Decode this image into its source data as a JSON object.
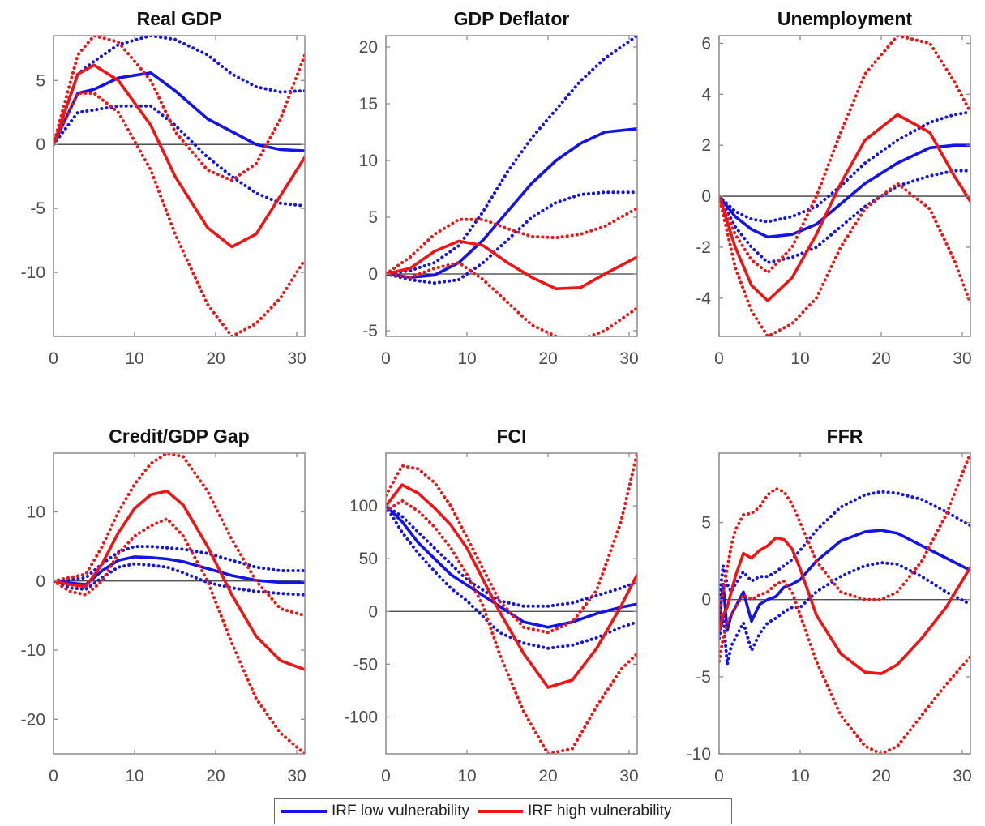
{
  "colors": {
    "low": "#1414e6",
    "high": "#f01414",
    "axis": "#8c8c8c",
    "zero": "#3a3a3a",
    "tick": "#4d4d4d"
  },
  "legend": [
    {
      "label": "IRF low vulnerability",
      "color": "#1414e6"
    },
    {
      "label": "IRF high vulnerability",
      "color": "#f01414"
    }
  ],
  "chart_data": [
    {
      "type": "line",
      "title": "Real GDP",
      "xlim": [
        0,
        31
      ],
      "ylim": [
        -15,
        8.5
      ],
      "xticks": [
        0,
        10,
        20,
        30
      ],
      "yticks": [
        -10,
        -5,
        0,
        5
      ],
      "x": [
        0,
        3,
        5,
        8,
        12,
        15,
        19,
        22,
        25,
        28,
        31
      ],
      "series": [
        {
          "name": "IRF low vulnerability",
          "color": "#1414e6",
          "style": "solid",
          "values": [
            0,
            4,
            4.3,
            5.2,
            5.6,
            4.2,
            2,
            1,
            0,
            -0.4,
            -0.5
          ]
        },
        {
          "color": "#1414e6",
          "style": "dotted",
          "values": [
            0,
            5.5,
            6.5,
            7.8,
            8.5,
            8.2,
            7,
            5.5,
            4.5,
            4.1,
            4.2
          ]
        },
        {
          "color": "#1414e6",
          "style": "dotted",
          "values": [
            0,
            2.5,
            2.7,
            3.0,
            3.0,
            1.5,
            -1,
            -2.5,
            -3.8,
            -4.6,
            -4.8
          ]
        },
        {
          "name": "IRF high vulnerability",
          "color": "#f01414",
          "style": "solid",
          "values": [
            0,
            5.5,
            6.2,
            5,
            1.5,
            -2.5,
            -6.5,
            -8,
            -7,
            -4,
            -1
          ]
        },
        {
          "color": "#f01414",
          "style": "dotted",
          "values": [
            0,
            7,
            8.5,
            8,
            5,
            1,
            -2,
            -2.8,
            -1.5,
            2,
            7
          ]
        },
        {
          "color": "#f01414",
          "style": "dotted",
          "values": [
            0,
            4,
            4,
            2.5,
            -2,
            -7,
            -12.5,
            -15,
            -14,
            -12,
            -9
          ]
        }
      ]
    },
    {
      "type": "line",
      "title": "GDP Deflator",
      "xlim": [
        0,
        31
      ],
      "ylim": [
        -5.5,
        21
      ],
      "xticks": [
        0,
        10,
        20,
        30
      ],
      "yticks": [
        -5,
        0,
        5,
        10,
        15,
        20
      ],
      "x": [
        0,
        3,
        6,
        9,
        12,
        15,
        18,
        21,
        24,
        27,
        31
      ],
      "series": [
        {
          "name": "IRF low vulnerability",
          "color": "#1414e6",
          "style": "solid",
          "values": [
            0,
            -0.3,
            -0.1,
            1,
            3,
            5.5,
            8,
            10,
            11.5,
            12.5,
            12.8
          ]
        },
        {
          "color": "#1414e6",
          "style": "dotted",
          "values": [
            0,
            0.3,
            1,
            2.5,
            5.5,
            9,
            12,
            14.5,
            17,
            19,
            21
          ]
        },
        {
          "color": "#1414e6",
          "style": "dotted",
          "values": [
            0,
            -0.5,
            -0.8,
            -0.5,
            1,
            3,
            5,
            6.3,
            7,
            7.2,
            7.2
          ]
        },
        {
          "name": "IRF high vulnerability",
          "color": "#f01414",
          "style": "solid",
          "values": [
            0,
            0.5,
            2,
            2.9,
            2.5,
            1,
            -0.3,
            -1.3,
            -1.2,
            0,
            1.5
          ]
        },
        {
          "color": "#f01414",
          "style": "dotted",
          "values": [
            0,
            1.5,
            3.5,
            4.8,
            4.8,
            4,
            3.3,
            3.2,
            3.5,
            4.2,
            5.8
          ]
        },
        {
          "color": "#f01414",
          "style": "dotted",
          "values": [
            0,
            -0.3,
            0.5,
            1,
            -0.5,
            -2.5,
            -4.5,
            -5.5,
            -5.8,
            -5,
            -3
          ]
        }
      ]
    },
    {
      "type": "line",
      "title": "Unemployment",
      "xlim": [
        0,
        31
      ],
      "ylim": [
        -5.5,
        6.3
      ],
      "xticks": [
        0,
        10,
        20,
        30
      ],
      "yticks": [
        -4,
        -2,
        0,
        2,
        4,
        6
      ],
      "x": [
        0,
        2,
        4,
        6,
        9,
        12,
        15,
        18,
        22,
        26,
        29,
        31
      ],
      "series": [
        {
          "name": "IRF low vulnerability",
          "color": "#1414e6",
          "style": "solid",
          "values": [
            0,
            -0.8,
            -1.3,
            -1.6,
            -1.5,
            -1.1,
            -0.3,
            0.5,
            1.3,
            1.9,
            2.0,
            2.0
          ]
        },
        {
          "color": "#1414e6",
          "style": "dotted",
          "values": [
            0,
            -0.6,
            -0.9,
            -1.0,
            -0.8,
            -0.4,
            0.4,
            1.3,
            2.2,
            2.9,
            3.2,
            3.3
          ]
        },
        {
          "color": "#1414e6",
          "style": "dotted",
          "values": [
            0,
            -1.2,
            -2,
            -2.6,
            -2.4,
            -2,
            -1.2,
            -0.4,
            0.4,
            0.8,
            1,
            1
          ]
        },
        {
          "name": "IRF high vulnerability",
          "color": "#f01414",
          "style": "solid",
          "values": [
            0,
            -2,
            -3.5,
            -4.1,
            -3.2,
            -1.5,
            0.5,
            2.2,
            3.2,
            2.5,
            0.8,
            -0.2
          ]
        },
        {
          "color": "#f01414",
          "style": "dotted",
          "values": [
            0,
            -1.5,
            -2.5,
            -3,
            -2,
            0,
            2.5,
            4.8,
            6.3,
            6,
            4.5,
            3.3
          ]
        },
        {
          "color": "#f01414",
          "style": "dotted",
          "values": [
            0,
            -2.8,
            -4.5,
            -5.5,
            -5,
            -4,
            -2,
            -0.5,
            0.5,
            -0.5,
            -2.5,
            -4.2
          ]
        }
      ]
    },
    {
      "type": "line",
      "title": "Credit/GDP Gap",
      "xlim": [
        0,
        31
      ],
      "ylim": [
        -25,
        18.5
      ],
      "xticks": [
        0,
        10,
        20,
        30
      ],
      "yticks": [
        -20,
        -10,
        0,
        10
      ],
      "x": [
        0,
        2,
        4,
        6,
        8,
        10,
        12,
        14,
        16,
        19,
        22,
        25,
        28,
        31
      ],
      "series": [
        {
          "name": "IRF low vulnerability",
          "color": "#1414e6",
          "style": "solid",
          "values": [
            0,
            -0.3,
            -0.5,
            1.5,
            3,
            3.5,
            3.4,
            3.2,
            2.8,
            1.8,
            0.8,
            0.1,
            -0.2,
            -0.2
          ]
        },
        {
          "color": "#1414e6",
          "style": "dotted",
          "values": [
            0,
            0.2,
            0.5,
            2.5,
            4.2,
            5,
            5,
            4.8,
            4.6,
            4,
            3,
            2,
            1.5,
            1.5
          ]
        },
        {
          "color": "#1414e6",
          "style": "dotted",
          "values": [
            0,
            -1,
            -1.2,
            0.5,
            2,
            2.5,
            2.3,
            2,
            1.2,
            -0.2,
            -1,
            -1.5,
            -1.8,
            -2
          ]
        },
        {
          "name": "IRF high vulnerability",
          "color": "#f01414",
          "style": "solid",
          "values": [
            0,
            -0.5,
            -0.8,
            2.5,
            7,
            10.5,
            12.5,
            13,
            11,
            5,
            -2,
            -8,
            -11.5,
            -12.8
          ]
        },
        {
          "color": "#f01414",
          "style": "dotted",
          "values": [
            0,
            0.5,
            1,
            5,
            10,
            14,
            17,
            18.5,
            18,
            13,
            6,
            0,
            -4,
            -5
          ]
        },
        {
          "color": "#f01414",
          "style": "dotted",
          "values": [
            0,
            -1.5,
            -2,
            0,
            4,
            6.5,
            8,
            9,
            6.5,
            0,
            -9,
            -17,
            -22,
            -25
          ]
        }
      ]
    },
    {
      "type": "line",
      "title": "FCI",
      "xlim": [
        0,
        31
      ],
      "ylim": [
        -135,
        150
      ],
      "xticks": [
        0,
        10,
        20,
        30
      ],
      "yticks": [
        -100,
        -50,
        0,
        50,
        100
      ],
      "x": [
        0,
        2,
        4,
        6,
        8,
        10,
        12,
        14,
        17,
        20,
        23,
        26,
        29,
        31
      ],
      "series": [
        {
          "name": "IRF low vulnerability",
          "color": "#1414e6",
          "style": "solid",
          "values": [
            100,
            85,
            65,
            50,
            35,
            25,
            15,
            5,
            -10,
            -15,
            -10,
            -2,
            4,
            7
          ]
        },
        {
          "color": "#1414e6",
          "style": "dotted",
          "values": [
            100,
            90,
            75,
            60,
            45,
            30,
            20,
            10,
            5,
            5,
            8,
            15,
            22,
            28
          ]
        },
        {
          "color": "#1414e6",
          "style": "dotted",
          "values": [
            100,
            75,
            55,
            38,
            22,
            10,
            -5,
            -20,
            -30,
            -35,
            -32,
            -25,
            -15,
            -10
          ]
        },
        {
          "name": "IRF high vulnerability",
          "color": "#f01414",
          "style": "solid",
          "values": [
            100,
            120,
            112,
            98,
            82,
            60,
            30,
            0,
            -40,
            -72,
            -65,
            -35,
            5,
            35
          ]
        },
        {
          "color": "#f01414",
          "style": "dotted",
          "values": [
            110,
            138,
            135,
            122,
            100,
            70,
            40,
            10,
            -15,
            -20,
            -10,
            20,
            85,
            150
          ]
        },
        {
          "color": "#f01414",
          "style": "dotted",
          "values": [
            95,
            105,
            95,
            80,
            60,
            35,
            5,
            -40,
            -95,
            -135,
            -130,
            -90,
            -55,
            -40
          ]
        }
      ]
    },
    {
      "type": "line",
      "title": "FFR",
      "xlim": [
        0,
        31
      ],
      "ylim": [
        -10,
        9.5
      ],
      "xticks": [
        0,
        10,
        20,
        30
      ],
      "yticks": [
        -10,
        -5,
        0,
        5
      ],
      "x": [
        0,
        0.5,
        1,
        1.5,
        2,
        3,
        4,
        5,
        6,
        7,
        8,
        9,
        10,
        12,
        15,
        18,
        20,
        22,
        25,
        28,
        31
      ],
      "series": [
        {
          "name": "IRF low vulnerability",
          "color": "#1414e6",
          "style": "solid",
          "values": [
            -1.5,
            1,
            -2,
            -1,
            -0.5,
            0.5,
            -1.4,
            -0.3,
            0,
            0.2,
            0.8,
            1,
            1.3,
            2.5,
            3.8,
            4.4,
            4.5,
            4.3,
            3.5,
            2.7,
            1.9
          ]
        },
        {
          "color": "#1414e6",
          "style": "dotted",
          "values": [
            0,
            2.2,
            1,
            0.5,
            1,
            1.8,
            1.2,
            1.5,
            1.5,
            1.8,
            2.2,
            2.6,
            3.2,
            4.5,
            6,
            6.8,
            7,
            6.9,
            6.5,
            5.7,
            4.8
          ]
        },
        {
          "color": "#1414e6",
          "style": "dotted",
          "values": [
            -2.5,
            -1,
            -4.2,
            -3,
            -2.5,
            -1.5,
            -3.3,
            -2.2,
            -1.5,
            -1.2,
            -0.8,
            -0.5,
            -0.5,
            0.5,
            1.5,
            2.2,
            2.4,
            2.3,
            1.5,
            0.5,
            -0.3
          ]
        },
        {
          "name": "IRF high vulnerability",
          "color": "#f01414",
          "style": "solid",
          "values": [
            -2,
            -1,
            -0.5,
            0.5,
            1.5,
            3,
            2.7,
            3.2,
            3.5,
            4,
            3.9,
            3.3,
            2,
            -1,
            -3.5,
            -4.7,
            -4.8,
            -4.2,
            -2.5,
            -0.5,
            2.1
          ]
        },
        {
          "color": "#f01414",
          "style": "dotted",
          "values": [
            -1,
            0.5,
            2,
            3.5,
            4.5,
            5.5,
            5.6,
            6,
            6.8,
            7.2,
            7,
            6.2,
            5,
            2.5,
            0.5,
            0,
            0,
            0.5,
            2.5,
            5.5,
            9.5
          ]
        },
        {
          "color": "#f01414",
          "style": "dotted",
          "values": [
            -4,
            -2.5,
            -1.5,
            -1,
            -0.5,
            0.3,
            0,
            0.3,
            0.5,
            1,
            1.2,
            0.5,
            -1,
            -4,
            -7.5,
            -9.5,
            -10,
            -9.5,
            -7.5,
            -5.5,
            -3.7
          ]
        }
      ]
    }
  ]
}
